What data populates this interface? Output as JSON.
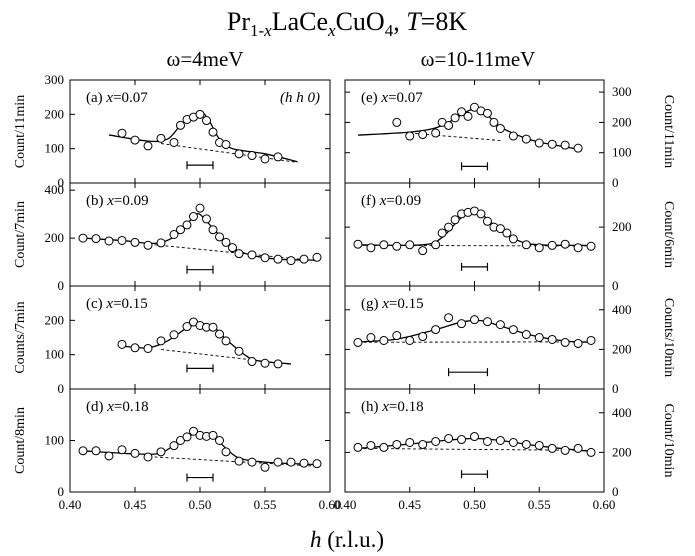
{
  "figure": {
    "title": {
      "base": "Pr",
      "sub1": "1-",
      "x1": "x",
      "mid": "LaCe",
      "x2": "x",
      "tail": "CuO",
      "sub2": "4",
      "sep": ", ",
      "T": "T",
      "Tval": "=8K"
    },
    "col_left": "ω=4meV",
    "col_right": "ω=10-11meV",
    "xlabel_h": "h",
    "xlabel_unit": " (r.l.u.)"
  },
  "chart_data": [
    {
      "type": "scatter",
      "panel": "(a)",
      "x_value": "0.07",
      "annotation": "(h h 0)",
      "ylabel": "Count/11min",
      "xlim": [
        0.4,
        0.6
      ],
      "ylim": [
        0,
        300
      ],
      "yticks": [
        "0",
        "100",
        "200",
        "300"
      ],
      "xticks": [],
      "points": [
        [
          0.44,
          145
        ],
        [
          0.45,
          125
        ],
        [
          0.46,
          108
        ],
        [
          0.47,
          130
        ],
        [
          0.48,
          118
        ],
        [
          0.485,
          168
        ],
        [
          0.49,
          185
        ],
        [
          0.495,
          192
        ],
        [
          0.5,
          200
        ],
        [
          0.505,
          182
        ],
        [
          0.51,
          148
        ],
        [
          0.515,
          118
        ],
        [
          0.52,
          112
        ],
        [
          0.53,
          85
        ],
        [
          0.54,
          80
        ],
        [
          0.55,
          70
        ],
        [
          0.56,
          76
        ]
      ],
      "fit": [
        [
          0.43,
          140
        ],
        [
          0.46,
          122
        ],
        [
          0.475,
          128
        ],
        [
          0.485,
          168
        ],
        [
          0.495,
          198
        ],
        [
          0.502,
          205
        ],
        [
          0.508,
          175
        ],
        [
          0.515,
          128
        ],
        [
          0.525,
          100
        ],
        [
          0.55,
          85
        ],
        [
          0.575,
          62
        ]
      ],
      "background": [
        [
          0.47,
          115
        ],
        [
          0.575,
          60
        ]
      ],
      "resolution": [
        0.49,
        0.51,
        52
      ]
    },
    {
      "type": "scatter",
      "panel": "(b)",
      "x_value": "0.09",
      "ylabel": "Count/7min",
      "xlim": [
        0.4,
        0.6
      ],
      "ylim": [
        0,
        430
      ],
      "yticks": [
        "0",
        "200",
        "400"
      ],
      "xticks": [],
      "points": [
        [
          0.41,
          200
        ],
        [
          0.42,
          198
        ],
        [
          0.43,
          188
        ],
        [
          0.44,
          190
        ],
        [
          0.45,
          182
        ],
        [
          0.46,
          170
        ],
        [
          0.47,
          180
        ],
        [
          0.48,
          215
        ],
        [
          0.485,
          235
        ],
        [
          0.49,
          255
        ],
        [
          0.495,
          290
        ],
        [
          0.5,
          325
        ],
        [
          0.505,
          280
        ],
        [
          0.51,
          235
        ],
        [
          0.515,
          205
        ],
        [
          0.52,
          182
        ],
        [
          0.525,
          160
        ],
        [
          0.53,
          135
        ],
        [
          0.54,
          130
        ],
        [
          0.55,
          118
        ],
        [
          0.56,
          112
        ],
        [
          0.57,
          106
        ],
        [
          0.58,
          112
        ],
        [
          0.59,
          120
        ]
      ],
      "fit": [
        [
          0.41,
          200
        ],
        [
          0.44,
          190
        ],
        [
          0.465,
          178
        ],
        [
          0.48,
          205
        ],
        [
          0.49,
          258
        ],
        [
          0.498,
          302
        ],
        [
          0.505,
          270
        ],
        [
          0.515,
          212
        ],
        [
          0.525,
          160
        ],
        [
          0.54,
          128
        ],
        [
          0.56,
          112
        ],
        [
          0.59,
          108
        ]
      ],
      "background": [
        [
          0.465,
          172
        ],
        [
          0.59,
          105
        ]
      ],
      "resolution": [
        0.49,
        0.51,
        68
      ]
    },
    {
      "type": "scatter",
      "panel": "(c)",
      "x_value": "0.15",
      "ylabel": "Counts/7min",
      "xlim": [
        0.4,
        0.6
      ],
      "ylim": [
        0,
        300
      ],
      "yticks": [
        "0",
        "100",
        "200"
      ],
      "xticks": [],
      "points": [
        [
          0.44,
          130
        ],
        [
          0.45,
          120
        ],
        [
          0.46,
          118
        ],
        [
          0.47,
          140
        ],
        [
          0.48,
          158
        ],
        [
          0.49,
          182
        ],
        [
          0.495,
          195
        ],
        [
          0.5,
          185
        ],
        [
          0.505,
          180
        ],
        [
          0.51,
          180
        ],
        [
          0.515,
          160
        ],
        [
          0.52,
          140
        ],
        [
          0.53,
          110
        ],
        [
          0.54,
          80
        ],
        [
          0.55,
          75
        ],
        [
          0.56,
          73
        ]
      ],
      "fit": [
        [
          0.44,
          125
        ],
        [
          0.46,
          120
        ],
        [
          0.475,
          140
        ],
        [
          0.49,
          178
        ],
        [
          0.5,
          190
        ],
        [
          0.51,
          182
        ],
        [
          0.52,
          145
        ],
        [
          0.535,
          98
        ],
        [
          0.545,
          82
        ],
        [
          0.57,
          73
        ]
      ],
      "background": [
        [
          0.47,
          115
        ],
        [
          0.57,
          72
        ]
      ],
      "resolution": [
        0.49,
        0.51,
        60
      ]
    },
    {
      "type": "scatter",
      "panel": "(d)",
      "x_value": "0.18",
      "ylabel": "Count/8min",
      "xlim": [
        0.4,
        0.6
      ],
      "ylim": [
        0,
        200
      ],
      "yticks": [
        "0",
        "100"
      ],
      "xticks": [
        "0.40",
        "0.45",
        "0.50",
        "0.55",
        "0.60"
      ],
      "points": [
        [
          0.41,
          80
        ],
        [
          0.42,
          80
        ],
        [
          0.43,
          70
        ],
        [
          0.44,
          82
        ],
        [
          0.45,
          75
        ],
        [
          0.46,
          68
        ],
        [
          0.47,
          78
        ],
        [
          0.48,
          90
        ],
        [
          0.485,
          100
        ],
        [
          0.49,
          107
        ],
        [
          0.495,
          118
        ],
        [
          0.5,
          110
        ],
        [
          0.505,
          108
        ],
        [
          0.51,
          110
        ],
        [
          0.515,
          100
        ],
        [
          0.52,
          78
        ],
        [
          0.53,
          60
        ],
        [
          0.54,
          58
        ],
        [
          0.55,
          48
        ],
        [
          0.56,
          58
        ],
        [
          0.57,
          58
        ],
        [
          0.58,
          56
        ],
        [
          0.59,
          55
        ]
      ],
      "fit": [
        [
          0.41,
          80
        ],
        [
          0.45,
          74
        ],
        [
          0.47,
          76
        ],
        [
          0.485,
          100
        ],
        [
          0.497,
          113
        ],
        [
          0.51,
          106
        ],
        [
          0.52,
          85
        ],
        [
          0.53,
          66
        ],
        [
          0.55,
          58
        ],
        [
          0.59,
          53
        ]
      ],
      "background": [
        [
          0.465,
          68
        ],
        [
          0.59,
          50
        ]
      ],
      "resolution": [
        0.49,
        0.51,
        28
      ]
    },
    {
      "type": "scatter",
      "panel": "(e)",
      "x_value": "0.07",
      "ylabel": "Count/11min",
      "xlim": [
        0.4,
        0.6
      ],
      "ylim": [
        0,
        340
      ],
      "yticks": [
        "0",
        "100",
        "200",
        "300"
      ],
      "xticks": [],
      "points": [
        [
          0.44,
          200
        ],
        [
          0.45,
          155
        ],
        [
          0.46,
          160
        ],
        [
          0.47,
          165
        ],
        [
          0.475,
          200
        ],
        [
          0.48,
          190
        ],
        [
          0.485,
          215
        ],
        [
          0.49,
          235
        ],
        [
          0.495,
          220
        ],
        [
          0.5,
          250
        ],
        [
          0.505,
          238
        ],
        [
          0.51,
          230
        ],
        [
          0.515,
          200
        ],
        [
          0.52,
          180
        ],
        [
          0.53,
          155
        ],
        [
          0.54,
          145
        ],
        [
          0.55,
          132
        ],
        [
          0.56,
          128
        ],
        [
          0.57,
          125
        ],
        [
          0.58,
          115
        ]
      ],
      "fit": [
        [
          0.41,
          158
        ],
        [
          0.45,
          168
        ],
        [
          0.47,
          182
        ],
        [
          0.485,
          212
        ],
        [
          0.498,
          242
        ],
        [
          0.51,
          222
        ],
        [
          0.52,
          185
        ],
        [
          0.535,
          155
        ],
        [
          0.55,
          135
        ],
        [
          0.58,
          112
        ]
      ],
      "background": [
        [
          0.45,
          165
        ],
        [
          0.52,
          140
        ]
      ],
      "resolution": [
        0.49,
        0.51,
        55
      ]
    },
    {
      "type": "scatter",
      "panel": "(f)",
      "x_value": "0.09",
      "ylabel": "Count/6min",
      "xlim": [
        0.4,
        0.6
      ],
      "ylim": [
        0,
        350
      ],
      "yticks": [
        "0",
        "200"
      ],
      "xticks": [],
      "points": [
        [
          0.41,
          142
        ],
        [
          0.42,
          130
        ],
        [
          0.43,
          140
        ],
        [
          0.44,
          135
        ],
        [
          0.45,
          140
        ],
        [
          0.46,
          120
        ],
        [
          0.47,
          140
        ],
        [
          0.475,
          180
        ],
        [
          0.48,
          200
        ],
        [
          0.485,
          225
        ],
        [
          0.49,
          245
        ],
        [
          0.495,
          250
        ],
        [
          0.5,
          255
        ],
        [
          0.505,
          245
        ],
        [
          0.51,
          220
        ],
        [
          0.515,
          200
        ],
        [
          0.52,
          195
        ],
        [
          0.525,
          180
        ],
        [
          0.53,
          160
        ],
        [
          0.54,
          140
        ],
        [
          0.55,
          130
        ],
        [
          0.56,
          138
        ],
        [
          0.57,
          142
        ],
        [
          0.58,
          130
        ],
        [
          0.59,
          135
        ]
      ],
      "fit": [
        [
          0.41,
          140
        ],
        [
          0.46,
          140
        ],
        [
          0.475,
          165
        ],
        [
          0.488,
          225
        ],
        [
          0.498,
          252
        ],
        [
          0.508,
          235
        ],
        [
          0.52,
          188
        ],
        [
          0.535,
          152
        ],
        [
          0.55,
          140
        ],
        [
          0.59,
          138
        ]
      ],
      "background": [
        [
          0.41,
          138
        ],
        [
          0.59,
          136
        ]
      ],
      "resolution": [
        0.49,
        0.51,
        65
      ]
    },
    {
      "type": "scatter",
      "panel": "(g)",
      "x_value": "0.15",
      "ylabel": "Counts/10min",
      "xlim": [
        0.4,
        0.6
      ],
      "ylim": [
        0,
        520
      ],
      "yticks": [
        "0",
        "200",
        "400"
      ],
      "xticks": [],
      "points": [
        [
          0.41,
          235
        ],
        [
          0.42,
          260
        ],
        [
          0.43,
          245
        ],
        [
          0.44,
          270
        ],
        [
          0.45,
          245
        ],
        [
          0.46,
          265
        ],
        [
          0.47,
          300
        ],
        [
          0.48,
          360
        ],
        [
          0.49,
          330
        ],
        [
          0.5,
          350
        ],
        [
          0.51,
          340
        ],
        [
          0.52,
          325
        ],
        [
          0.53,
          300
        ],
        [
          0.54,
          275
        ],
        [
          0.55,
          260
        ],
        [
          0.56,
          250
        ],
        [
          0.57,
          235
        ],
        [
          0.58,
          230
        ],
        [
          0.59,
          245
        ]
      ],
      "fit": [
        [
          0.41,
          238
        ],
        [
          0.44,
          252
        ],
        [
          0.47,
          300
        ],
        [
          0.49,
          338
        ],
        [
          0.505,
          345
        ],
        [
          0.52,
          318
        ],
        [
          0.545,
          270
        ],
        [
          0.57,
          242
        ],
        [
          0.59,
          236
        ]
      ],
      "background": [
        [
          0.41,
          236
        ],
        [
          0.59,
          238
        ]
      ],
      "resolution": [
        0.48,
        0.51,
        85
      ]
    },
    {
      "type": "scatter",
      "panel": "(h)",
      "x_value": "0.18",
      "ylabel": "Count/10min",
      "xlim": [
        0.4,
        0.6
      ],
      "ylim": [
        0,
        520
      ],
      "yticks": [
        "0",
        "200",
        "400"
      ],
      "xticks": [
        "0.40",
        "0.45",
        "0.50",
        "0.55",
        "0.60"
      ],
      "points": [
        [
          0.41,
          225
        ],
        [
          0.42,
          235
        ],
        [
          0.43,
          225
        ],
        [
          0.44,
          240
        ],
        [
          0.45,
          250
        ],
        [
          0.46,
          240
        ],
        [
          0.47,
          255
        ],
        [
          0.48,
          270
        ],
        [
          0.49,
          265
        ],
        [
          0.5,
          280
        ],
        [
          0.51,
          255
        ],
        [
          0.52,
          260
        ],
        [
          0.53,
          250
        ],
        [
          0.54,
          240
        ],
        [
          0.55,
          235
        ],
        [
          0.56,
          220
        ],
        [
          0.57,
          210
        ],
        [
          0.58,
          220
        ],
        [
          0.59,
          200
        ]
      ],
      "fit": [
        [
          0.41,
          220
        ],
        [
          0.45,
          242
        ],
        [
          0.48,
          262
        ],
        [
          0.5,
          270
        ],
        [
          0.52,
          260
        ],
        [
          0.55,
          232
        ],
        [
          0.59,
          205
        ]
      ],
      "background": [
        [
          0.41,
          220
        ],
        [
          0.59,
          210
        ]
      ],
      "resolution": [
        0.49,
        0.51,
        90
      ]
    }
  ]
}
